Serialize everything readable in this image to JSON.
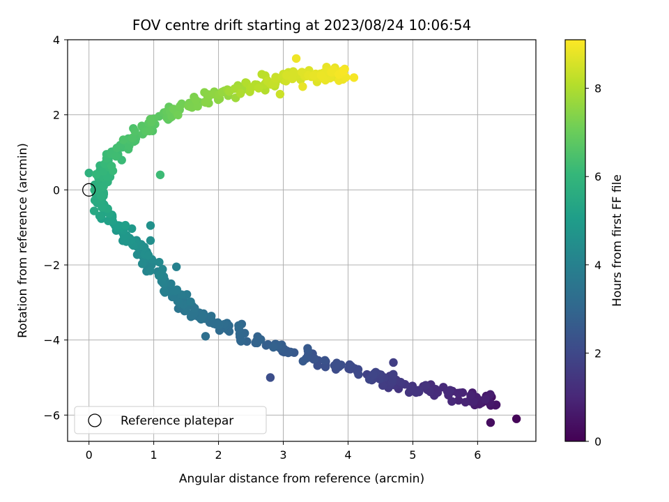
{
  "chart_data": {
    "type": "scatter",
    "title": "FOV centre drift starting at 2023/08/24 10:06:54",
    "xlabel": "Angular distance from reference (arcmin)",
    "ylabel": "Rotation from reference (arcmin)",
    "xlim": [
      -0.33,
      6.9
    ],
    "ylim": [
      -6.7,
      4.0
    ],
    "xticks": [
      0,
      1,
      2,
      3,
      4,
      5,
      6
    ],
    "yticks": [
      -6,
      -4,
      -2,
      0,
      2,
      4
    ],
    "grid": true,
    "legend": {
      "placement": "lower-left",
      "entries": [
        "Reference platepar"
      ]
    },
    "reference_point": {
      "x": 0.0,
      "y": 0.0,
      "label": "Reference platepar"
    },
    "colorbar": {
      "label": "Hours from first FF file",
      "range": [
        0,
        9.1
      ],
      "ticks": [
        0,
        2,
        4,
        6,
        8
      ],
      "colormap": "viridis"
    },
    "trend": [
      {
        "x": 6.25,
        "y": -5.65,
        "h": 0.4
      },
      {
        "x": 5.85,
        "y": -5.55,
        "h": 0.9
      },
      {
        "x": 4.9,
        "y": -5.25,
        "h": 1.4
      },
      {
        "x": 4.4,
        "y": -4.95,
        "h": 1.8
      },
      {
        "x": 3.6,
        "y": -4.55,
        "h": 2.3
      },
      {
        "x": 2.7,
        "y": -4.1,
        "h": 2.8
      },
      {
        "x": 2.0,
        "y": -3.55,
        "h": 3.2
      },
      {
        "x": 1.6,
        "y": -3.25,
        "h": 3.5
      },
      {
        "x": 1.2,
        "y": -2.6,
        "h": 3.9
      },
      {
        "x": 0.85,
        "y": -1.7,
        "h": 4.4
      },
      {
        "x": 0.55,
        "y": -1.2,
        "h": 4.8
      },
      {
        "x": 0.25,
        "y": -0.6,
        "h": 5.3
      },
      {
        "x": 0.15,
        "y": 0.0,
        "h": 5.7
      },
      {
        "x": 0.3,
        "y": 0.7,
        "h": 6.1
      },
      {
        "x": 0.7,
        "y": 1.4,
        "h": 6.5
      },
      {
        "x": 1.2,
        "y": 2.0,
        "h": 6.9
      },
      {
        "x": 1.8,
        "y": 2.45,
        "h": 7.4
      },
      {
        "x": 2.5,
        "y": 2.75,
        "h": 8.0
      },
      {
        "x": 3.0,
        "y": 3.0,
        "h": 8.4
      },
      {
        "x": 3.55,
        "y": 3.05,
        "h": 8.8
      },
      {
        "x": 4.0,
        "y": 3.15,
        "h": 9.0
      }
    ],
    "outliers": [
      {
        "x": 3.2,
        "y": 3.5,
        "h": 8.9
      },
      {
        "x": 3.3,
        "y": 2.75,
        "h": 8.8
      },
      {
        "x": 2.95,
        "y": 2.55,
        "h": 8.4
      },
      {
        "x": 0.95,
        "y": -0.95,
        "h": 4.6
      },
      {
        "x": 0.95,
        "y": -1.35,
        "h": 4.5
      },
      {
        "x": 1.35,
        "y": -2.05,
        "h": 4.0
      },
      {
        "x": 6.2,
        "y": -6.2,
        "h": 0.3
      },
      {
        "x": 6.6,
        "y": -6.1,
        "h": 0.1
      },
      {
        "x": 5.05,
        "y": -5.4,
        "h": 1.4
      },
      {
        "x": 1.8,
        "y": -3.9,
        "h": 3.3
      },
      {
        "x": 4.7,
        "y": -4.6,
        "h": 1.7
      },
      {
        "x": 1.1,
        "y": 0.4,
        "h": 6.2
      },
      {
        "x": 0.0,
        "y": 0.45,
        "h": 5.8
      },
      {
        "x": 2.8,
        "y": -5.0,
        "h": 2.2
      }
    ]
  }
}
